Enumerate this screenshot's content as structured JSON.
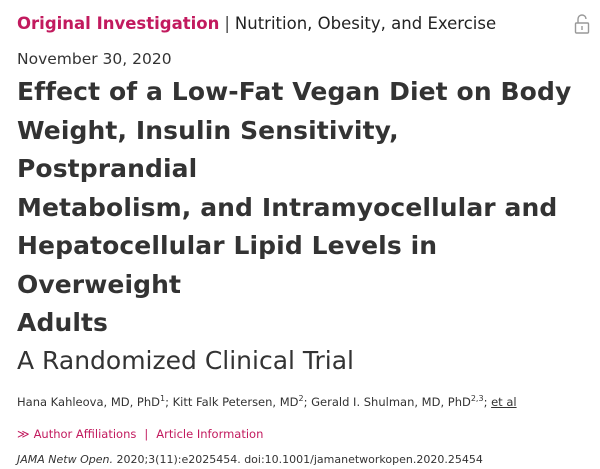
{
  "article": {
    "section_type": "Original Investigation",
    "separator": "|",
    "section_topic": "Nutrition, Obesity, and Exercise",
    "date": "November 30, 2020",
    "title_lines": [
      "Effect of a Low-Fat Vegan Diet on Body",
      "Weight, Insulin Sensitivity, Postprandial",
      "Metabolism, and Intramyocellular and",
      "Hepatocellular Lipid Levels in Overweight",
      "Adults"
    ],
    "subtitle": "A Randomized Clinical Trial",
    "authors": [
      {
        "name": "Hana Kahleova, MD, PhD",
        "sup": "1"
      },
      {
        "name": "Kitt Falk Petersen, MD",
        "sup": "2"
      },
      {
        "name": "Gerald I. Shulman, MD, PhD",
        "sup": "2,3"
      }
    ],
    "author_sep": ";",
    "et_al": "et al",
    "links": {
      "chevron": "≫",
      "affiliations": "Author Affiliations",
      "pipe": "|",
      "info": "Article Information"
    },
    "citation": {
      "journal": "JAMA Netw Open.",
      "details": "2020;3(11):e2025454. doi:10.1001/jamanetworkopen.2020.25454"
    },
    "icons": {
      "access": "open-lock-icon"
    },
    "colors": {
      "accent": "#c21a5e",
      "text": "#333333"
    }
  }
}
